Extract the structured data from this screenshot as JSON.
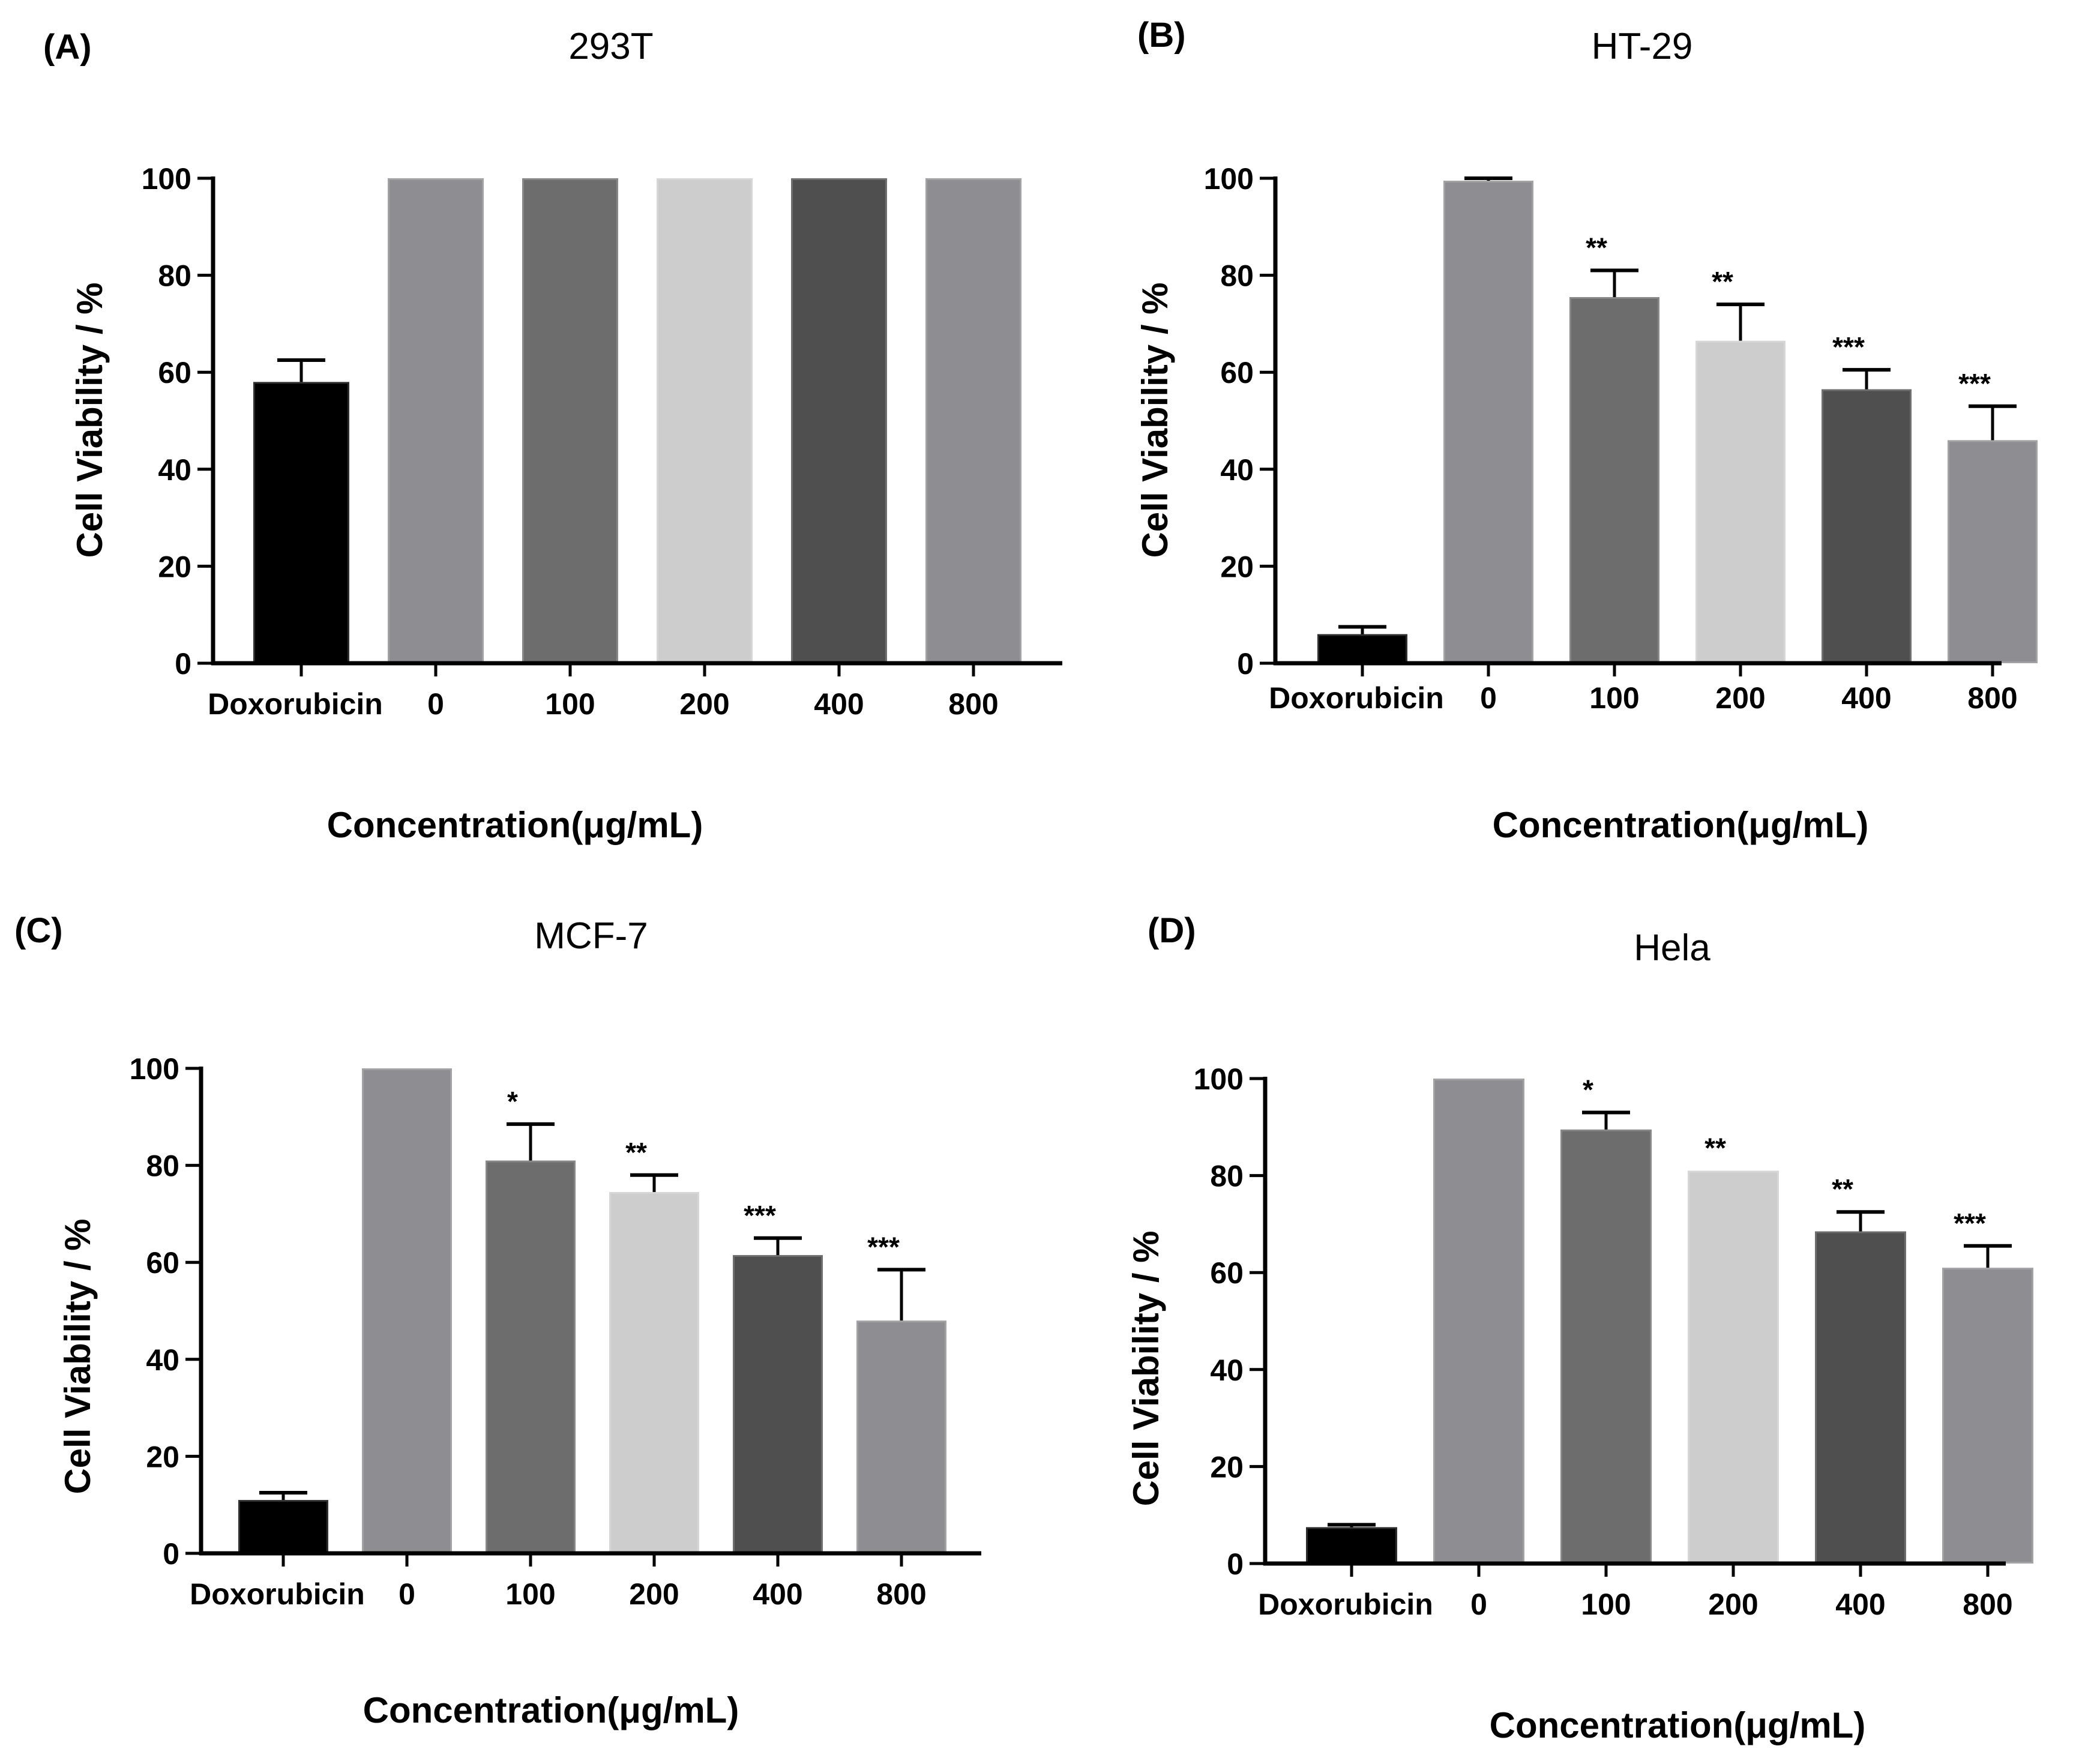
{
  "chart_data": [
    {
      "panel": "(A)",
      "type": "bar",
      "title": "293T",
      "xlabel": "Concentration(μg/mL)",
      "ylabel": "Cell Viability / %",
      "ylim": [
        0,
        100
      ],
      "yticks": [
        0,
        20,
        40,
        60,
        80,
        100
      ],
      "categories": [
        "Doxorubicin",
        "0",
        "100",
        "200",
        "400",
        "800"
      ],
      "values": [
        58,
        100,
        100,
        100,
        100,
        100
      ],
      "errors": [
        4.5,
        0,
        0,
        0,
        0,
        0
      ],
      "significance": [
        "",
        "",
        "",
        "",
        "",
        ""
      ],
      "colors": [
        "#000000",
        "#8e8e92",
        "#6d6d6d",
        "#cdcdcd",
        "#4f4f4f",
        "#8e8e92"
      ],
      "grid": false
    },
    {
      "panel": "(B)",
      "type": "bar",
      "title": "HT-29",
      "xlabel": "Concentration(μg/mL)",
      "ylabel": "Cell Viability / %",
      "ylim": [
        0,
        100
      ],
      "yticks": [
        0,
        20,
        40,
        60,
        80,
        100
      ],
      "categories": [
        "Doxorubicin",
        "0",
        "100",
        "200",
        "400",
        "800"
      ],
      "values": [
        6,
        99.5,
        75.5,
        66.5,
        56.5,
        46
      ],
      "errors": [
        1.5,
        0.5,
        5.5,
        7.5,
        4,
        7
      ],
      "significance": [
        "",
        "",
        "**",
        "**",
        "***",
        "***"
      ],
      "colors": [
        "#000000",
        "#8e8e92",
        "#6d6d6d",
        "#cdcdcd",
        "#4f4f4f",
        "#8e8e92"
      ],
      "grid": false
    },
    {
      "panel": "(C)",
      "type": "bar",
      "title": "MCF-7",
      "xlabel": "Concentration(μg/mL)",
      "ylabel": "Cell Viability / %",
      "ylim": [
        0,
        100
      ],
      "yticks": [
        0,
        20,
        40,
        60,
        80,
        100
      ],
      "categories": [
        "Doxorubicin",
        "0",
        "100",
        "200",
        "400",
        "800"
      ],
      "values": [
        11,
        100,
        81,
        74.5,
        61.5,
        48
      ],
      "errors": [
        1.5,
        0,
        7.5,
        3.5,
        3.5,
        10.5
      ],
      "significance": [
        "",
        "",
        "*",
        "**",
        "***",
        "***"
      ],
      "colors": [
        "#000000",
        "#8e8e92",
        "#6d6d6d",
        "#cdcdcd",
        "#4f4f4f",
        "#8e8e92"
      ],
      "grid": false
    },
    {
      "panel": "(D)",
      "type": "bar",
      "title": "Hela",
      "xlabel": "Concentration(μg/mL)",
      "ylabel": "Cell Viability / %",
      "ylim": [
        0,
        100
      ],
      "yticks": [
        0,
        20,
        40,
        60,
        80,
        100
      ],
      "categories": [
        "Doxorubicin",
        "0",
        "100",
        "200",
        "400",
        "800"
      ],
      "values": [
        7.5,
        100,
        89.5,
        81,
        68.5,
        61
      ],
      "errors": [
        0.5,
        0,
        3.5,
        0,
        4,
        4.5
      ],
      "significance": [
        "",
        "",
        "*",
        "**",
        "**",
        "***"
      ],
      "colors": [
        "#000000",
        "#8e8e92",
        "#6d6d6d",
        "#cdcdcd",
        "#4f4f4f",
        "#8e8e92"
      ],
      "grid": false
    }
  ]
}
